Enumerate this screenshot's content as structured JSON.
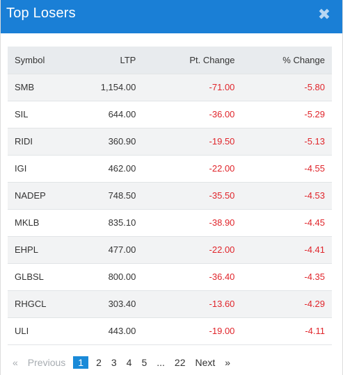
{
  "modal": {
    "title": "Top Losers",
    "close_symbol": "✖"
  },
  "table": {
    "headers": [
      "Symbol",
      "LTP",
      "Pt. Change",
      "% Change"
    ],
    "rows": [
      {
        "symbol": "SMB",
        "ltp": "1,154.00",
        "pt_change": "-71.00",
        "pct_change": "-5.80"
      },
      {
        "symbol": "SIL",
        "ltp": "644.00",
        "pt_change": "-36.00",
        "pct_change": "-5.29"
      },
      {
        "symbol": "RIDI",
        "ltp": "360.90",
        "pt_change": "-19.50",
        "pct_change": "-5.13"
      },
      {
        "symbol": "IGI",
        "ltp": "462.00",
        "pt_change": "-22.00",
        "pct_change": "-4.55"
      },
      {
        "symbol": "NADEP",
        "ltp": "748.50",
        "pt_change": "-35.50",
        "pct_change": "-4.53"
      },
      {
        "symbol": "MKLB",
        "ltp": "835.10",
        "pt_change": "-38.90",
        "pct_change": "-4.45"
      },
      {
        "symbol": "EHPL",
        "ltp": "477.00",
        "pt_change": "-22.00",
        "pct_change": "-4.41"
      },
      {
        "symbol": "GLBSL",
        "ltp": "800.00",
        "pt_change": "-36.40",
        "pct_change": "-4.35"
      },
      {
        "symbol": "RHGCL",
        "ltp": "303.40",
        "pt_change": "-13.60",
        "pct_change": "-4.29"
      },
      {
        "symbol": "ULI",
        "ltp": "443.00",
        "pt_change": "-19.00",
        "pct_change": "-4.11"
      }
    ]
  },
  "pagination": {
    "first_arrow": "«",
    "previous": "Previous",
    "pages": [
      "1",
      "2",
      "3",
      "4",
      "5"
    ],
    "ellipsis": "...",
    "last_page": "22",
    "next": "Next",
    "last_arrow": "»",
    "current": "1"
  },
  "colors": {
    "header_bg": "#1a7fd6",
    "negative": "#e0242a",
    "active_page": "#1a8ad8"
  },
  "icons": {
    "close": "close-icon",
    "first": "double-chevron-left-icon",
    "last": "double-chevron-right-icon"
  }
}
